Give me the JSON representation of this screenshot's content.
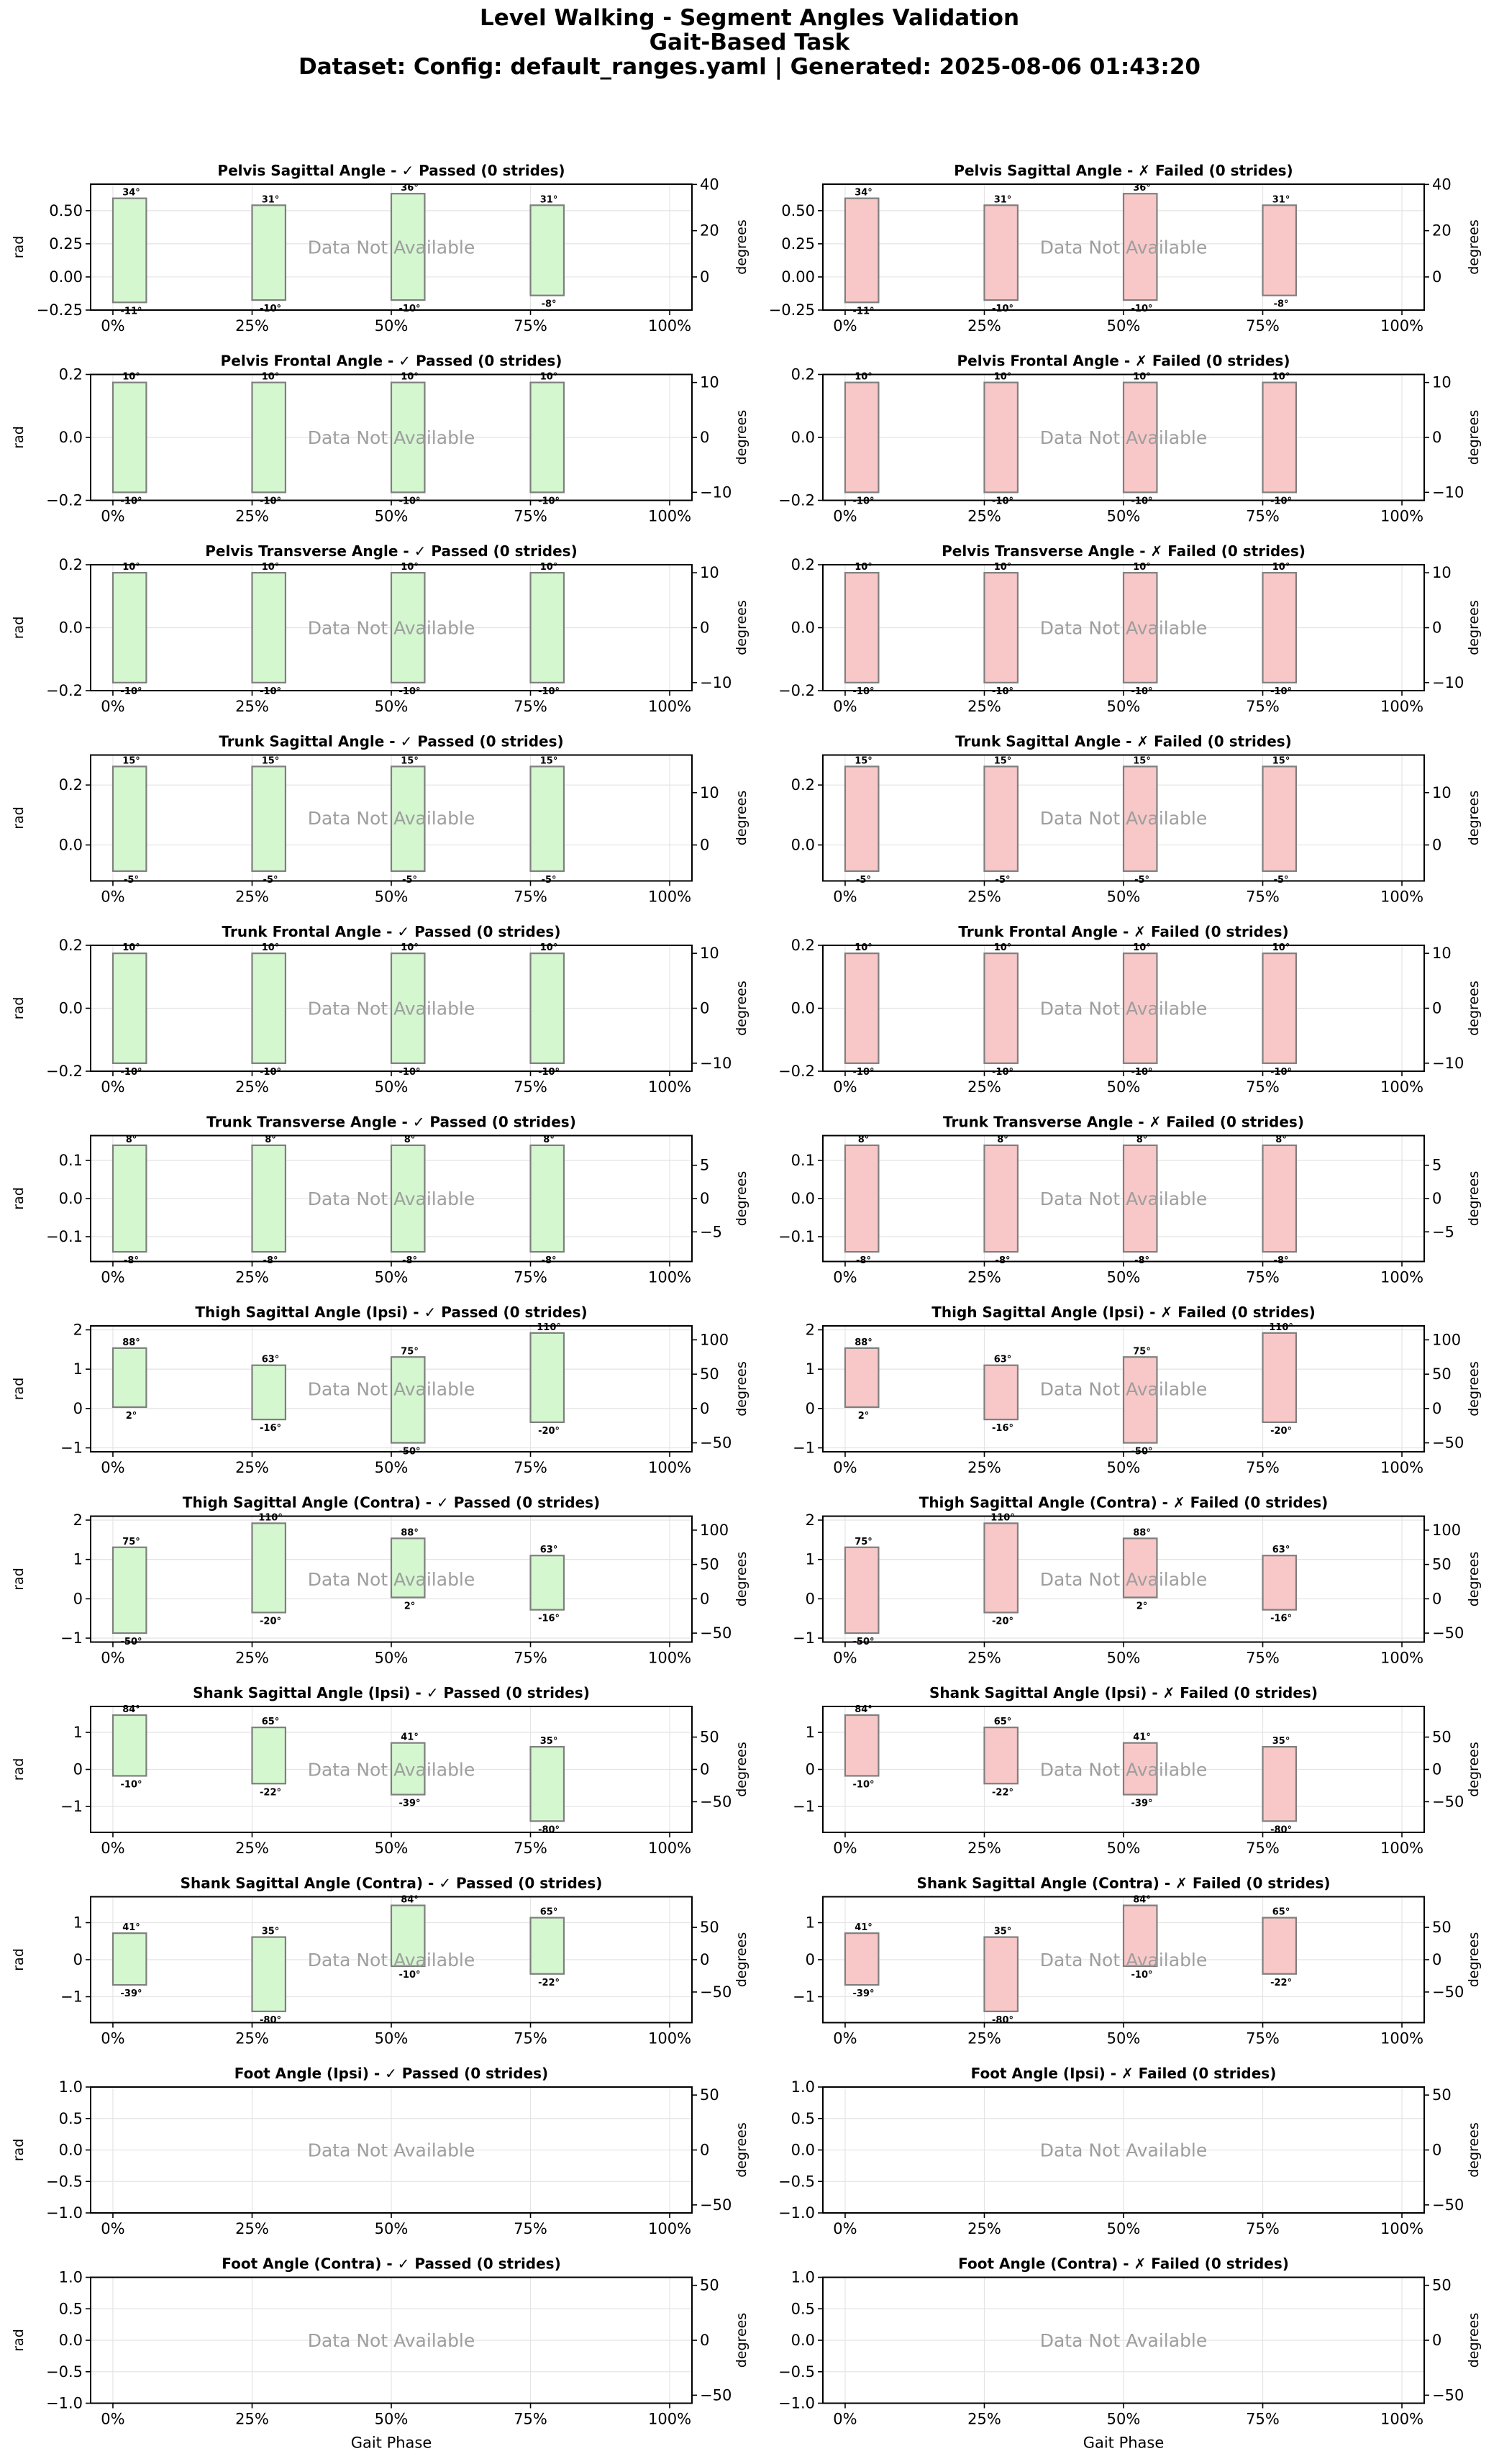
{
  "header": {
    "title": "Level Walking - Segment Angles Validation",
    "subtitle": "Gait-Based Task",
    "dataset_line": "Dataset: Config: default_ranges.yaml | Generated: 2025-08-06 01:43:20"
  },
  "colors": {
    "passed_fill": "#d4f7d0",
    "failed_fill": "#f8c8c8",
    "bar_edge": "#7f7f7f",
    "grid": "#e4e4e4",
    "na_text": "#9e9e9e"
  },
  "columns": [
    {
      "key": "passed",
      "status_label": "✓ Passed (0 strides)"
    },
    {
      "key": "failed",
      "status_label": "✗ Failed (0 strides)"
    }
  ],
  "common": {
    "left_axis_label": "rad",
    "right_axis_label": "degrees",
    "x_axis_label": "Gait Phase",
    "x_tick_labels": [
      "0%",
      "25%",
      "50%",
      "75%",
      "100%"
    ],
    "no_data_text": "Data Not Available"
  },
  "chart_data": [
    {
      "type": "bar",
      "title": "Pelvis Sagittal Angle",
      "x": [
        0,
        25,
        50,
        75
      ],
      "min_deg": [
        -11,
        -10,
        -10,
        -8
      ],
      "max_deg": [
        34,
        31,
        36,
        31
      ],
      "min_labels": [
        "-11°",
        "-10°",
        "-10°",
        "-8°"
      ],
      "max_labels": [
        "34°",
        "31°",
        "36°",
        "31°"
      ],
      "ylim_rad": [
        -0.25,
        0.7
      ],
      "yticks_rad": [
        -0.25,
        0.0,
        0.25,
        0.5
      ],
      "ytick_labels_rad": [
        "−0.25",
        "0.00",
        "0.25",
        "0.50"
      ],
      "yticks_deg": [
        0,
        20,
        40
      ],
      "ytick_labels_deg": [
        "0",
        "20",
        "40"
      ],
      "xlim": [
        -4,
        104
      ],
      "grid": true
    },
    {
      "type": "bar",
      "title": "Pelvis Frontal Angle",
      "x": [
        0,
        25,
        50,
        75
      ],
      "min_deg": [
        -10,
        -10,
        -10,
        -10
      ],
      "max_deg": [
        10,
        10,
        10,
        10
      ],
      "min_labels": [
        "-10°",
        "-10°",
        "-10°",
        "-10°"
      ],
      "max_labels": [
        "10°",
        "10°",
        "10°",
        "10°"
      ],
      "ylim_rad": [
        -0.2,
        0.2
      ],
      "yticks_rad": [
        -0.2,
        0.0,
        0.2
      ],
      "ytick_labels_rad": [
        "−0.2",
        "0.0",
        "0.2"
      ],
      "yticks_deg": [
        -10,
        0,
        10
      ],
      "ytick_labels_deg": [
        "−10",
        "0",
        "10"
      ],
      "xlim": [
        -4,
        104
      ],
      "grid": true
    },
    {
      "type": "bar",
      "title": "Pelvis Transverse Angle",
      "x": [
        0,
        25,
        50,
        75
      ],
      "min_deg": [
        -10,
        -10,
        -10,
        -10
      ],
      "max_deg": [
        10,
        10,
        10,
        10
      ],
      "min_labels": [
        "-10°",
        "-10°",
        "-10°",
        "-10°"
      ],
      "max_labels": [
        "10°",
        "10°",
        "10°",
        "10°"
      ],
      "ylim_rad": [
        -0.2,
        0.2
      ],
      "yticks_rad": [
        -0.2,
        0.0,
        0.2
      ],
      "ytick_labels_rad": [
        "−0.2",
        "0.0",
        "0.2"
      ],
      "yticks_deg": [
        -10,
        0,
        10
      ],
      "ytick_labels_deg": [
        "−10",
        "0",
        "10"
      ],
      "xlim": [
        -4,
        104
      ],
      "grid": true
    },
    {
      "type": "bar",
      "title": "Trunk Sagittal Angle",
      "x": [
        0,
        25,
        50,
        75
      ],
      "min_deg": [
        -5,
        -5,
        -5,
        -5
      ],
      "max_deg": [
        15,
        15,
        15,
        15
      ],
      "min_labels": [
        "-5°",
        "-5°",
        "-5°",
        "-5°"
      ],
      "max_labels": [
        "15°",
        "15°",
        "15°",
        "15°"
      ],
      "ylim_rad": [
        -0.12,
        0.3
      ],
      "yticks_rad": [
        0.0,
        0.2
      ],
      "ytick_labels_rad": [
        "0.0",
        "0.2"
      ],
      "yticks_deg": [
        0,
        10
      ],
      "ytick_labels_deg": [
        "0",
        "10"
      ],
      "xlim": [
        -4,
        104
      ],
      "grid": true
    },
    {
      "type": "bar",
      "title": "Trunk Frontal Angle",
      "x": [
        0,
        25,
        50,
        75
      ],
      "min_deg": [
        -10,
        -10,
        -10,
        -10
      ],
      "max_deg": [
        10,
        10,
        10,
        10
      ],
      "min_labels": [
        "-10°",
        "-10°",
        "-10°",
        "-10°"
      ],
      "max_labels": [
        "10°",
        "10°",
        "10°",
        "10°"
      ],
      "ylim_rad": [
        -0.2,
        0.2
      ],
      "yticks_rad": [
        -0.2,
        0.0,
        0.2
      ],
      "ytick_labels_rad": [
        "−0.2",
        "0.0",
        "0.2"
      ],
      "yticks_deg": [
        -10,
        0,
        10
      ],
      "ytick_labels_deg": [
        "−10",
        "0",
        "10"
      ],
      "xlim": [
        -4,
        104
      ],
      "grid": true
    },
    {
      "type": "bar",
      "title": "Trunk Transverse Angle",
      "x": [
        0,
        25,
        50,
        75
      ],
      "min_deg": [
        -8,
        -8,
        -8,
        -8
      ],
      "max_deg": [
        8,
        8,
        8,
        8
      ],
      "min_labels": [
        "-8°",
        "-8°",
        "-8°",
        "-8°"
      ],
      "max_labels": [
        "8°",
        "8°",
        "8°",
        "8°"
      ],
      "ylim_rad": [
        -0.165,
        0.165
      ],
      "yticks_rad": [
        -0.1,
        0.0,
        0.1
      ],
      "ytick_labels_rad": [
        "−0.1",
        "0.0",
        "0.1"
      ],
      "yticks_deg": [
        -5,
        0,
        5
      ],
      "ytick_labels_deg": [
        "−5",
        "0",
        "5"
      ],
      "xlim": [
        -4,
        104
      ],
      "grid": true
    },
    {
      "type": "bar",
      "title": "Thigh Sagittal Angle (Ipsi)",
      "x": [
        0,
        25,
        50,
        75
      ],
      "min_deg": [
        2,
        -16,
        -50,
        -20
      ],
      "max_deg": [
        88,
        63,
        75,
        110
      ],
      "min_labels": [
        "2°",
        "-16°",
        "-50°",
        "-20°"
      ],
      "max_labels": [
        "88°",
        "63°",
        "75°",
        "110°"
      ],
      "ylim_rad": [
        -1.1,
        2.1
      ],
      "yticks_rad": [
        -1,
        0,
        1,
        2
      ],
      "ytick_labels_rad": [
        "−1",
        "0",
        "1",
        "2"
      ],
      "yticks_deg": [
        -50,
        0,
        50,
        100
      ],
      "ytick_labels_deg": [
        "−50",
        "0",
        "50",
        "100"
      ],
      "xlim": [
        -4,
        104
      ],
      "grid": true
    },
    {
      "type": "bar",
      "title": "Thigh Sagittal Angle (Contra)",
      "x": [
        0,
        25,
        50,
        75
      ],
      "min_deg": [
        -50,
        -20,
        2,
        -16
      ],
      "max_deg": [
        75,
        110,
        88,
        63
      ],
      "min_labels": [
        "-50°",
        "-20°",
        "2°",
        "-16°"
      ],
      "max_labels": [
        "75°",
        "110°",
        "88°",
        "63°"
      ],
      "ylim_rad": [
        -1.1,
        2.1
      ],
      "yticks_rad": [
        -1,
        0,
        1,
        2
      ],
      "ytick_labels_rad": [
        "−1",
        "0",
        "1",
        "2"
      ],
      "yticks_deg": [
        -50,
        0,
        50,
        100
      ],
      "ytick_labels_deg": [
        "−50",
        "0",
        "50",
        "100"
      ],
      "xlim": [
        -4,
        104
      ],
      "grid": true
    },
    {
      "type": "bar",
      "title": "Shank Sagittal Angle (Ipsi)",
      "x": [
        0,
        25,
        50,
        75
      ],
      "min_deg": [
        -10,
        -22,
        -39,
        -80
      ],
      "max_deg": [
        84,
        65,
        41,
        35
      ],
      "min_labels": [
        "-10°",
        "-22°",
        "-39°",
        "-80°"
      ],
      "max_labels": [
        "84°",
        "65°",
        "41°",
        "35°"
      ],
      "ylim_rad": [
        -1.7,
        1.7
      ],
      "yticks_rad": [
        -1,
        0,
        1
      ],
      "ytick_labels_rad": [
        "−1",
        "0",
        "1"
      ],
      "yticks_deg": [
        -50,
        0,
        50
      ],
      "ytick_labels_deg": [
        "−50",
        "0",
        "50"
      ],
      "xlim": [
        -4,
        104
      ],
      "grid": true
    },
    {
      "type": "bar",
      "title": "Shank Sagittal Angle (Contra)",
      "x": [
        0,
        25,
        50,
        75
      ],
      "min_deg": [
        -39,
        -80,
        -10,
        -22
      ],
      "max_deg": [
        41,
        35,
        84,
        65
      ],
      "min_labels": [
        "-39°",
        "-80°",
        "-10°",
        "-22°"
      ],
      "max_labels": [
        "41°",
        "35°",
        "84°",
        "65°"
      ],
      "ylim_rad": [
        -1.7,
        1.7
      ],
      "yticks_rad": [
        -1,
        0,
        1
      ],
      "ytick_labels_rad": [
        "−1",
        "0",
        "1"
      ],
      "yticks_deg": [
        -50,
        0,
        50
      ],
      "ytick_labels_deg": [
        "−50",
        "0",
        "50"
      ],
      "xlim": [
        -4,
        104
      ],
      "grid": true
    },
    {
      "type": "bar",
      "title": "Foot Angle (Ipsi)",
      "x": [],
      "min_deg": [],
      "max_deg": [],
      "min_labels": [],
      "max_labels": [],
      "ylim_rad": [
        -1.0,
        1.0
      ],
      "yticks_rad": [
        -1.0,
        -0.5,
        0.0,
        0.5,
        1.0
      ],
      "ytick_labels_rad": [
        "−1.0",
        "−0.5",
        "0.0",
        "0.5",
        "1.0"
      ],
      "yticks_deg": [
        -50,
        0,
        50
      ],
      "ytick_labels_deg": [
        "−50",
        "0",
        "50"
      ],
      "xlim": [
        -4,
        104
      ],
      "grid": true
    },
    {
      "type": "bar",
      "title": "Foot Angle (Contra)",
      "x": [],
      "min_deg": [],
      "max_deg": [],
      "min_labels": [],
      "max_labels": [],
      "ylim_rad": [
        -1.0,
        1.0
      ],
      "yticks_rad": [
        -1.0,
        -0.5,
        0.0,
        0.5,
        1.0
      ],
      "ytick_labels_rad": [
        "−1.0",
        "−0.5",
        "0.0",
        "0.5",
        "1.0"
      ],
      "yticks_deg": [
        -50,
        0,
        50
      ],
      "ytick_labels_deg": [
        "−50",
        "0",
        "50"
      ],
      "xlim": [
        -4,
        104
      ],
      "grid": true
    }
  ]
}
